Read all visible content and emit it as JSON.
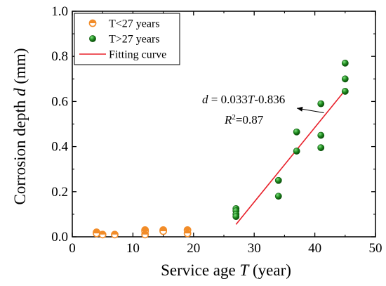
{
  "chart_data": {
    "type": "scatter",
    "xlabel_main": "Service age ",
    "xlabel_var": "T",
    "xlabel_unit": " (year)",
    "ylabel_main": "Corrosion depth ",
    "ylabel_var": "d",
    "ylabel_unit": " (mm)",
    "xlim": [
      0,
      50
    ],
    "ylim": [
      0,
      1.0
    ],
    "x_ticks": [
      "0",
      "10",
      "20",
      "30",
      "40",
      "50"
    ],
    "y_ticks": [
      "0.0",
      "0.2",
      "0.4",
      "0.6",
      "0.8",
      "1.0"
    ],
    "grid": false,
    "legend_position": "top-left",
    "series": [
      {
        "name": "T<27 years",
        "color": "#f28c28",
        "marker": "half-filled-circle",
        "points": [
          {
            "x": 4,
            "y": 0.02
          },
          {
            "x": 4,
            "y": 0.015
          },
          {
            "x": 5,
            "y": 0.01
          },
          {
            "x": 7,
            "y": 0.01
          },
          {
            "x": 12,
            "y": 0.03
          },
          {
            "x": 12,
            "y": 0.025
          },
          {
            "x": 12,
            "y": 0.01
          },
          {
            "x": 15,
            "y": 0.03
          },
          {
            "x": 15,
            "y": 0.025
          },
          {
            "x": 19,
            "y": 0.03
          },
          {
            "x": 19,
            "y": 0.015
          }
        ]
      },
      {
        "name": "T>27 years",
        "color": "#1e8a1e",
        "marker": "circle",
        "points": [
          {
            "x": 27,
            "y": 0.125
          },
          {
            "x": 27,
            "y": 0.115
          },
          {
            "x": 27,
            "y": 0.1
          },
          {
            "x": 27,
            "y": 0.09
          },
          {
            "x": 34,
            "y": 0.25
          },
          {
            "x": 34,
            "y": 0.18
          },
          {
            "x": 37,
            "y": 0.465
          },
          {
            "x": 37,
            "y": 0.38
          },
          {
            "x": 41,
            "y": 0.59
          },
          {
            "x": 41,
            "y": 0.45
          },
          {
            "x": 41,
            "y": 0.395
          },
          {
            "x": 45,
            "y": 0.77
          },
          {
            "x": 45,
            "y": 0.7
          },
          {
            "x": 45,
            "y": 0.645
          }
        ]
      },
      {
        "name": "Fitting curve",
        "color": "#e8202a",
        "type": "line",
        "points": [
          {
            "x": 27,
            "y": 0.055
          },
          {
            "x": 45,
            "y": 0.65
          }
        ]
      }
    ],
    "annotation": {
      "eq_var1": "d",
      "eq_mid": " = 0.033",
      "eq_var2": "T",
      "eq_tail": "-0.836",
      "r2_main": "R",
      "r2_sup": "2",
      "r2_tail": "=0.87"
    }
  }
}
